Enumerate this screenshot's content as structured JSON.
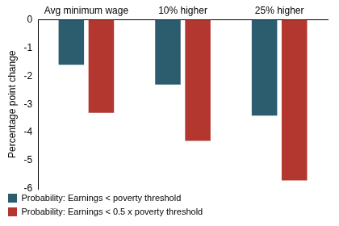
{
  "chart_data": {
    "type": "bar",
    "y_label": "Percentage point change",
    "categories": [
      "Avg minimum wage",
      "10% higher",
      "25% higher"
    ],
    "series": [
      {
        "name": "Probability: Earnings < poverty threshold",
        "color": "#2b5d6f",
        "values": [
          -1.6,
          -2.3,
          -3.4
        ]
      },
      {
        "name": "Probability: Earnings < 0.5 x poverty threshold",
        "color": "#b3362f",
        "values": [
          -3.3,
          -4.3,
          -5.7
        ]
      }
    ],
    "ylim": [
      -6,
      0
    ],
    "yticks": [
      0,
      -1,
      -2,
      -3,
      -4,
      -5,
      -6
    ],
    "grid": false,
    "legend": "bottom-left",
    "data_labels": false
  }
}
